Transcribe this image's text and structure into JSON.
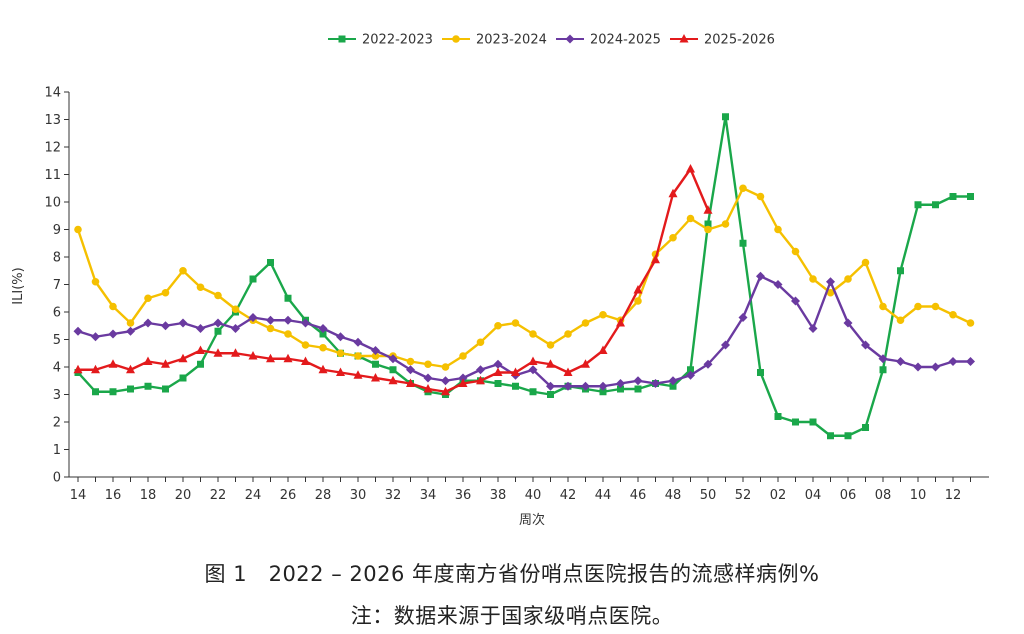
{
  "chart_data": {
    "type": "line",
    "xlabel": "周次",
    "ylabel": "ILI(%)",
    "ylim": [
      0,
      14
    ],
    "yticks": [
      0,
      1,
      2,
      3,
      4,
      5,
      6,
      7,
      8,
      9,
      10,
      11,
      12,
      13,
      14
    ],
    "weeks": [
      "14",
      "15",
      "16",
      "17",
      "18",
      "19",
      "20",
      "21",
      "22",
      "23",
      "24",
      "25",
      "26",
      "27",
      "28",
      "29",
      "30",
      "31",
      "32",
      "33",
      "34",
      "35",
      "36",
      "37",
      "38",
      "39",
      "40",
      "41",
      "42",
      "43",
      "44",
      "45",
      "46",
      "47",
      "48",
      "49",
      "50",
      "51",
      "52",
      "01",
      "02",
      "03",
      "04",
      "05",
      "06",
      "07",
      "08",
      "09",
      "10",
      "11",
      "12",
      "13"
    ],
    "xtick_labels": [
      "14",
      "16",
      "18",
      "20",
      "22",
      "24",
      "26",
      "28",
      "30",
      "32",
      "34",
      "36",
      "38",
      "40",
      "42",
      "44",
      "46",
      "48",
      "50",
      "52",
      "02",
      "04",
      "06",
      "08",
      "10",
      "12"
    ],
    "grid": false,
    "legend_position": "top-center",
    "series": [
      {
        "name": "2022-2023",
        "color": "#1aa74a",
        "marker": "square",
        "values": [
          3.8,
          3.1,
          3.1,
          3.2,
          3.3,
          3.2,
          3.6,
          4.1,
          5.3,
          6.0,
          7.2,
          7.8,
          6.5,
          5.7,
          5.2,
          4.5,
          4.4,
          4.1,
          3.9,
          3.4,
          3.1,
          3.0,
          3.5,
          3.5,
          3.4,
          3.3,
          3.1,
          3.0,
          3.3,
          3.2,
          3.1,
          3.2,
          3.2,
          3.4,
          3.3,
          3.9,
          9.2,
          13.1,
          8.5,
          3.8,
          2.2,
          2.0,
          2.0,
          1.5,
          1.5,
          1.8,
          3.9,
          7.5,
          9.9,
          9.9,
          10.2,
          10.2
        ]
      },
      {
        "name": "2023-2024",
        "color": "#f5c000",
        "marker": "circle",
        "values": [
          9.0,
          7.1,
          6.2,
          5.6,
          6.5,
          6.7,
          7.5,
          6.9,
          6.6,
          6.1,
          5.7,
          5.4,
          5.2,
          4.8,
          4.7,
          4.5,
          4.4,
          4.4,
          4.4,
          4.2,
          4.1,
          4.0,
          4.4,
          4.9,
          5.5,
          5.6,
          5.2,
          4.8,
          5.2,
          5.6,
          5.9,
          5.7,
          6.4,
          8.1,
          8.7,
          9.4,
          9.0,
          9.2,
          10.5,
          10.2,
          9.0,
          8.2,
          7.2,
          6.7,
          7.2,
          7.8,
          6.2,
          5.7,
          6.2,
          6.2,
          5.9,
          5.6
        ]
      },
      {
        "name": "2024-2025",
        "color": "#6a3aa0",
        "marker": "diamond",
        "values": [
          5.3,
          5.1,
          5.2,
          5.3,
          5.6,
          5.5,
          5.6,
          5.4,
          5.6,
          5.4,
          5.8,
          5.7,
          5.7,
          5.6,
          5.4,
          5.1,
          4.9,
          4.6,
          4.3,
          3.9,
          3.6,
          3.5,
          3.6,
          3.9,
          4.1,
          3.7,
          3.9,
          3.3,
          3.3,
          3.3,
          3.3,
          3.4,
          3.5,
          3.4,
          3.5,
          3.7,
          4.1,
          4.8,
          5.8,
          7.3,
          7.0,
          6.4,
          5.4,
          7.1,
          5.6,
          4.8,
          4.3,
          4.2,
          4.0,
          4.0,
          4.2,
          4.2
        ]
      },
      {
        "name": "2025-2026",
        "color": "#e31a1c",
        "marker": "triangle",
        "values": [
          3.9,
          3.9,
          4.1,
          3.9,
          4.2,
          4.1,
          4.3,
          4.6,
          4.5,
          4.5,
          4.4,
          4.3,
          4.3,
          4.2,
          3.9,
          3.8,
          3.7,
          3.6,
          3.5,
          3.4,
          3.2,
          3.1,
          3.4,
          3.5,
          3.8,
          3.8,
          4.2,
          4.1,
          3.8,
          4.1,
          4.6,
          5.6,
          6.8,
          7.9,
          10.3,
          11.2,
          9.7,
          null,
          null,
          null,
          null,
          null,
          null,
          null,
          null,
          null,
          null,
          null,
          null,
          null,
          null,
          null
        ]
      }
    ]
  },
  "caption": {
    "title": "图 1　2022 – 2026 年度南方省份哨点医院报告的流感样病例%",
    "note": "注：数据来源于国家级哨点医院。"
  }
}
